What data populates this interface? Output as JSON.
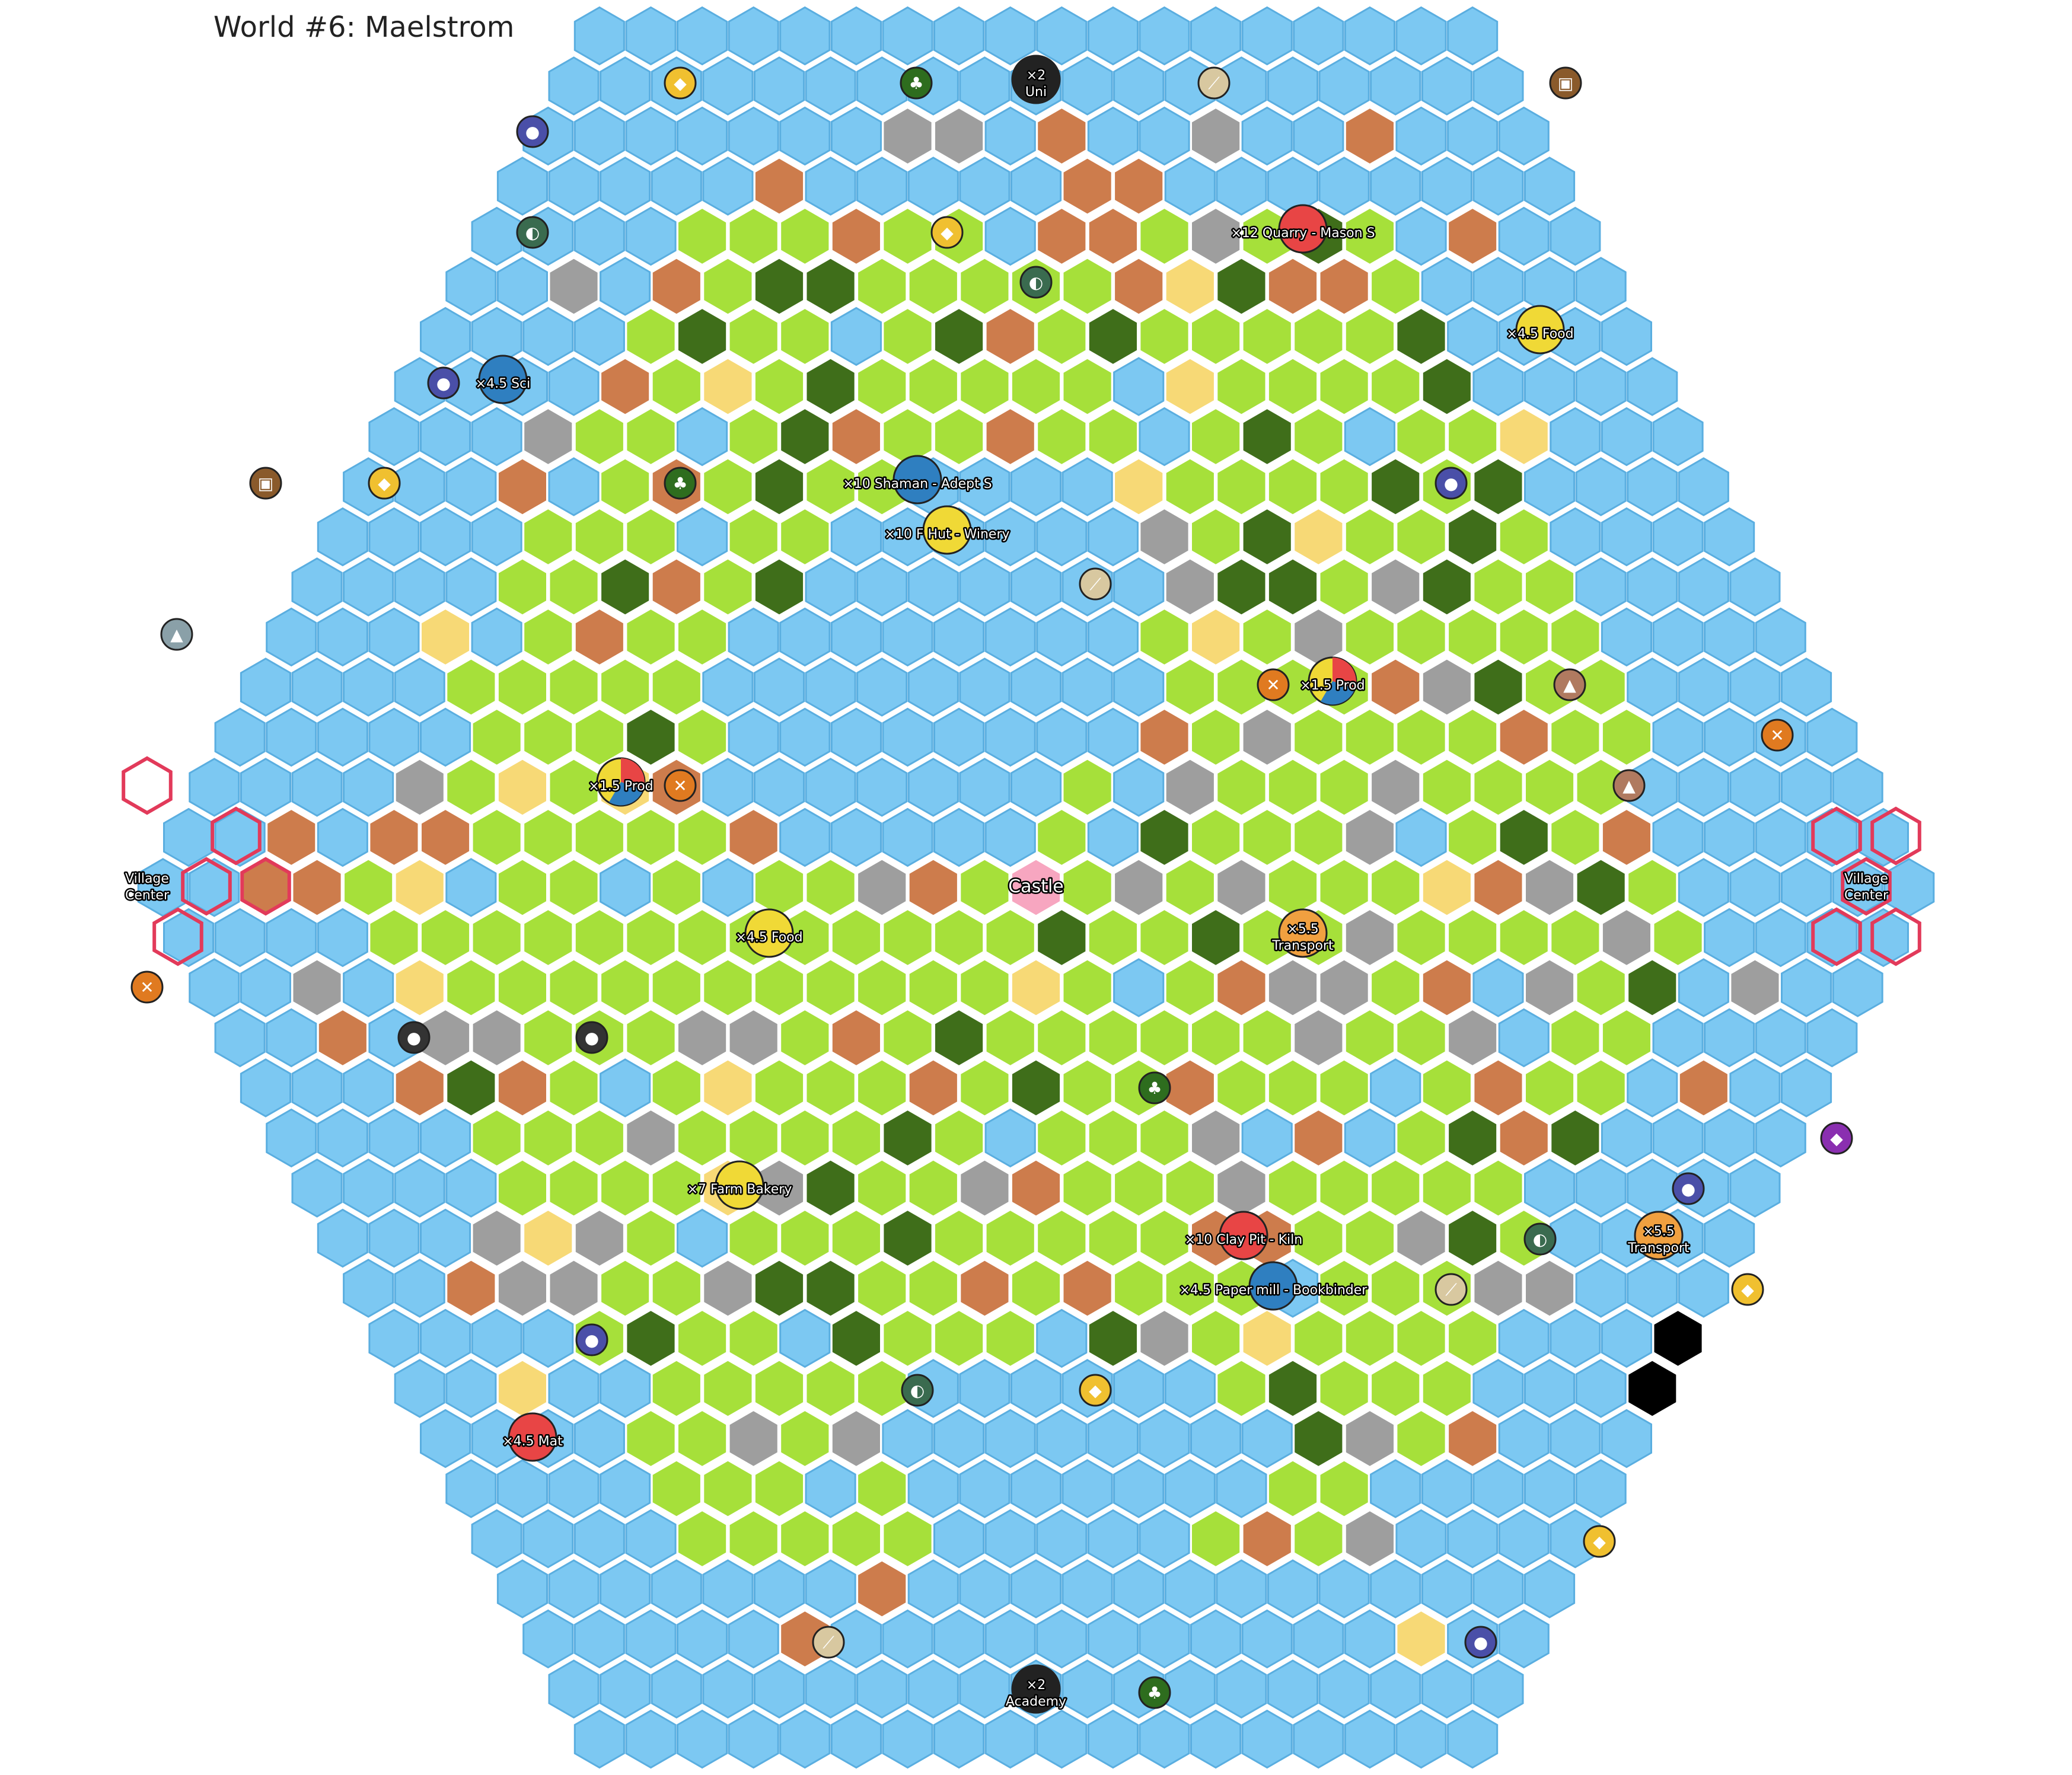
{
  "title": "World #6: Maelstrom",
  "palette": {
    "water": "#7cc8f2",
    "grass": "#a6e03a",
    "forest": "#3f6e1a",
    "dirt": "#cd7c4c",
    "rock": "#9e9e9e",
    "sand": "#f7d976",
    "void": "#000000",
    "castle": "#f7a6c0",
    "cell_stroke": "#ffffff",
    "village_outline": "#e23a5a"
  },
  "bonuses": [
    {
      "id": "uni",
      "lines": [
        "×2",
        "Uni"
      ],
      "color": "#222222"
    },
    {
      "id": "quarry",
      "lines": [
        "×12 Quarry - Mason S"
      ],
      "color": "#e84545"
    },
    {
      "id": "food-ne",
      "lines": [
        "×4.5 Food"
      ],
      "color": "#f0d936"
    },
    {
      "id": "sci",
      "lines": [
        "×4.5 Sci"
      ],
      "color": "#2f7fc0"
    },
    {
      "id": "shaman",
      "lines": [
        "×10 Shaman - Adept S"
      ],
      "color": "#2f7fc0"
    },
    {
      "id": "fhut",
      "lines": [
        "×10 F Hut - Winery"
      ],
      "color": "#f0d936"
    },
    {
      "id": "prod-e",
      "lines": [
        "×1.5 Prod"
      ],
      "color": "multi"
    },
    {
      "id": "prod-w",
      "lines": [
        "×1.5 Prod"
      ],
      "color": "multi"
    },
    {
      "id": "village-w",
      "lines": [
        "Village",
        "Center"
      ],
      "color": "none"
    },
    {
      "id": "village-e",
      "lines": [
        "Village",
        "Center"
      ],
      "color": "none"
    },
    {
      "id": "castle",
      "lines": [
        "Castle"
      ],
      "color": "castle"
    },
    {
      "id": "food-c",
      "lines": [
        "×4.5 Food"
      ],
      "color": "#f0d936"
    },
    {
      "id": "transport-c",
      "lines": [
        "×5.5",
        "Transport"
      ],
      "color": "#f0a040"
    },
    {
      "id": "bakery",
      "lines": [
        "×7 Farm Bakery"
      ],
      "color": "#f0d936"
    },
    {
      "id": "clay",
      "lines": [
        "×10 Clay Pit - Kiln"
      ],
      "color": "#e84545"
    },
    {
      "id": "paper",
      "lines": [
        "×4.5 Paper mill - Bookbinder"
      ],
      "color": "#2f7fc0"
    },
    {
      "id": "transport-e",
      "lines": [
        "×5.5",
        "Transport"
      ],
      "color": "#f0a040"
    },
    {
      "id": "mat",
      "lines": [
        "×4.5 Mat"
      ],
      "color": "#e84545"
    },
    {
      "id": "academy",
      "lines": [
        "×2",
        "Academy"
      ],
      "color": "#222222"
    }
  ],
  "resource_icons": [
    "herb-icon",
    "chest-icon",
    "potion-icon",
    "mortar-icon",
    "cheese-icon",
    "tusk-icon",
    "crossed-tools-icon",
    "crystal-ore-icon",
    "copper-ore-icon",
    "coal-icon",
    "purple-ore-icon"
  ]
}
